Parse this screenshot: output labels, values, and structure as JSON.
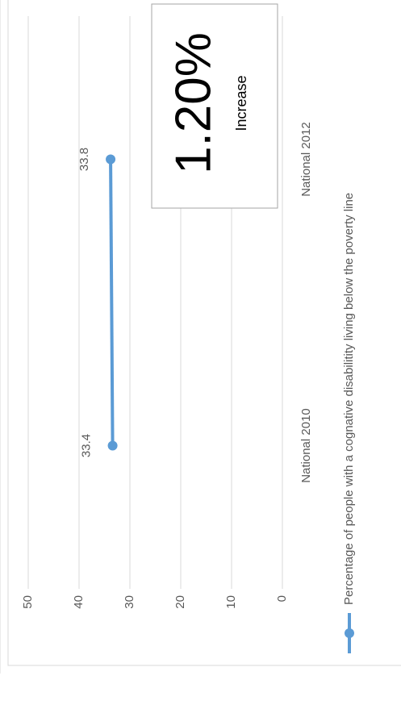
{
  "chart_data": {
    "type": "line",
    "categories": [
      "National 2010",
      "National 2012"
    ],
    "series": [
      {
        "name": "Percentage of people with a cognative disabilitity living below the poverty line",
        "color": "#5b9bd5",
        "values": [
          33.4,
          33.8
        ]
      }
    ],
    "ylim": [
      0,
      50
    ],
    "yticks": [
      0,
      10,
      20,
      30,
      40,
      50
    ],
    "grid": true,
    "legend": "bottom",
    "annotations": [
      "1.20%",
      "Increase"
    ]
  }
}
